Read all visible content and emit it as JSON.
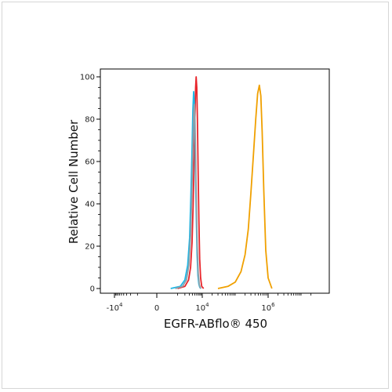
{
  "chart_data": {
    "type": "line",
    "title": "",
    "xlabel": "EGFR-ABflo® 450",
    "ylabel": "Relative Cell Number",
    "xscale": "biexponential",
    "ylim": [
      0,
      100
    ],
    "grid": false,
    "legend": "none",
    "yticks": [
      {
        "value": 0,
        "label": "0"
      },
      {
        "value": 20,
        "label": "20"
      },
      {
        "value": 40,
        "label": "40"
      },
      {
        "value": 60,
        "label": "60"
      },
      {
        "value": 80,
        "label": "80"
      },
      {
        "value": 100,
        "label": "100"
      }
    ],
    "xticks": [
      {
        "value": -10000,
        "base": "-10",
        "exp": "4"
      },
      {
        "value": 0,
        "base": "0",
        "exp": ""
      },
      {
        "value": 10000,
        "base": "10",
        "exp": "4"
      },
      {
        "value": 1000000,
        "base": "10",
        "exp": "6"
      }
    ],
    "series": [
      {
        "color": "#e8252b",
        "x": [
          1000,
          2000,
          2800,
          3400,
          3900,
          4300,
          4700,
          5100,
          5400,
          5700,
          6000,
          6400,
          6800,
          7300,
          7900,
          8600,
          9500,
          11000
        ],
        "y": [
          0,
          1,
          4,
          10,
          22,
          40,
          62,
          82,
          95,
          100,
          95,
          80,
          56,
          32,
          14,
          5,
          1,
          0
        ]
      },
      {
        "color": "#1fb7e6",
        "x": [
          500,
          1300,
          2000,
          2600,
          3100,
          3500,
          3900,
          4200,
          4500,
          4800,
          5100,
          5400,
          5800,
          6200,
          6700,
          7300,
          8000,
          9000
        ],
        "y": [
          0,
          1,
          4,
          11,
          24,
          44,
          66,
          84,
          93,
          88,
          72,
          52,
          32,
          16,
          6,
          2,
          0.5,
          0
        ]
      },
      {
        "color": "#8fa0a8",
        "x": [
          800,
          1600,
          2300,
          2900,
          3400,
          3800,
          4200,
          4500,
          4800,
          5100,
          5400,
          5800,
          6300,
          6900,
          7600,
          8500
        ],
        "y": [
          0,
          1,
          4,
          11,
          25,
          45,
          66,
          82,
          87,
          80,
          62,
          40,
          20,
          7,
          2,
          0
        ]
      },
      {
        "color": "#f0a000",
        "x": [
          30000,
          60000,
          100000,
          150000,
          200000,
          250000,
          300000,
          360000,
          420000,
          480000,
          540000,
          600000,
          660000,
          740000,
          850000,
          1000000,
          1300000
        ],
        "y": [
          0,
          1,
          3,
          8,
          16,
          28,
          45,
          64,
          80,
          92,
          96,
          91,
          74,
          46,
          18,
          5,
          0
        ]
      }
    ]
  }
}
